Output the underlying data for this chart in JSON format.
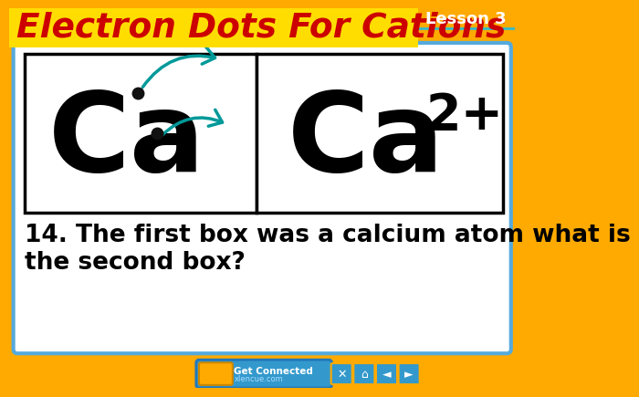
{
  "title": "Electron Dots For Cations",
  "title_color": "#cc0000",
  "title_bg_color": "#ffdd00",
  "lesson_label": "Lesson 3",
  "lesson_bg_color": "#ffaa00",
  "main_bg_color": "#ffaa00",
  "slide_bg_color": "#ffffff",
  "slide_border_color": "#55aadd",
  "box_border_color": "#000000",
  "left_symbol": "Ca",
  "right_symbol": "Ca",
  "right_superscript": "2+",
  "question_text": "14. The first box was a calcium atom what is\nthe second box?",
  "question_color": "#000000",
  "arrow_color": "#009999",
  "dot_color": "#111111",
  "bottom_bar_color": "#3399cc",
  "bottom_icon_bg": "#ffaa00"
}
